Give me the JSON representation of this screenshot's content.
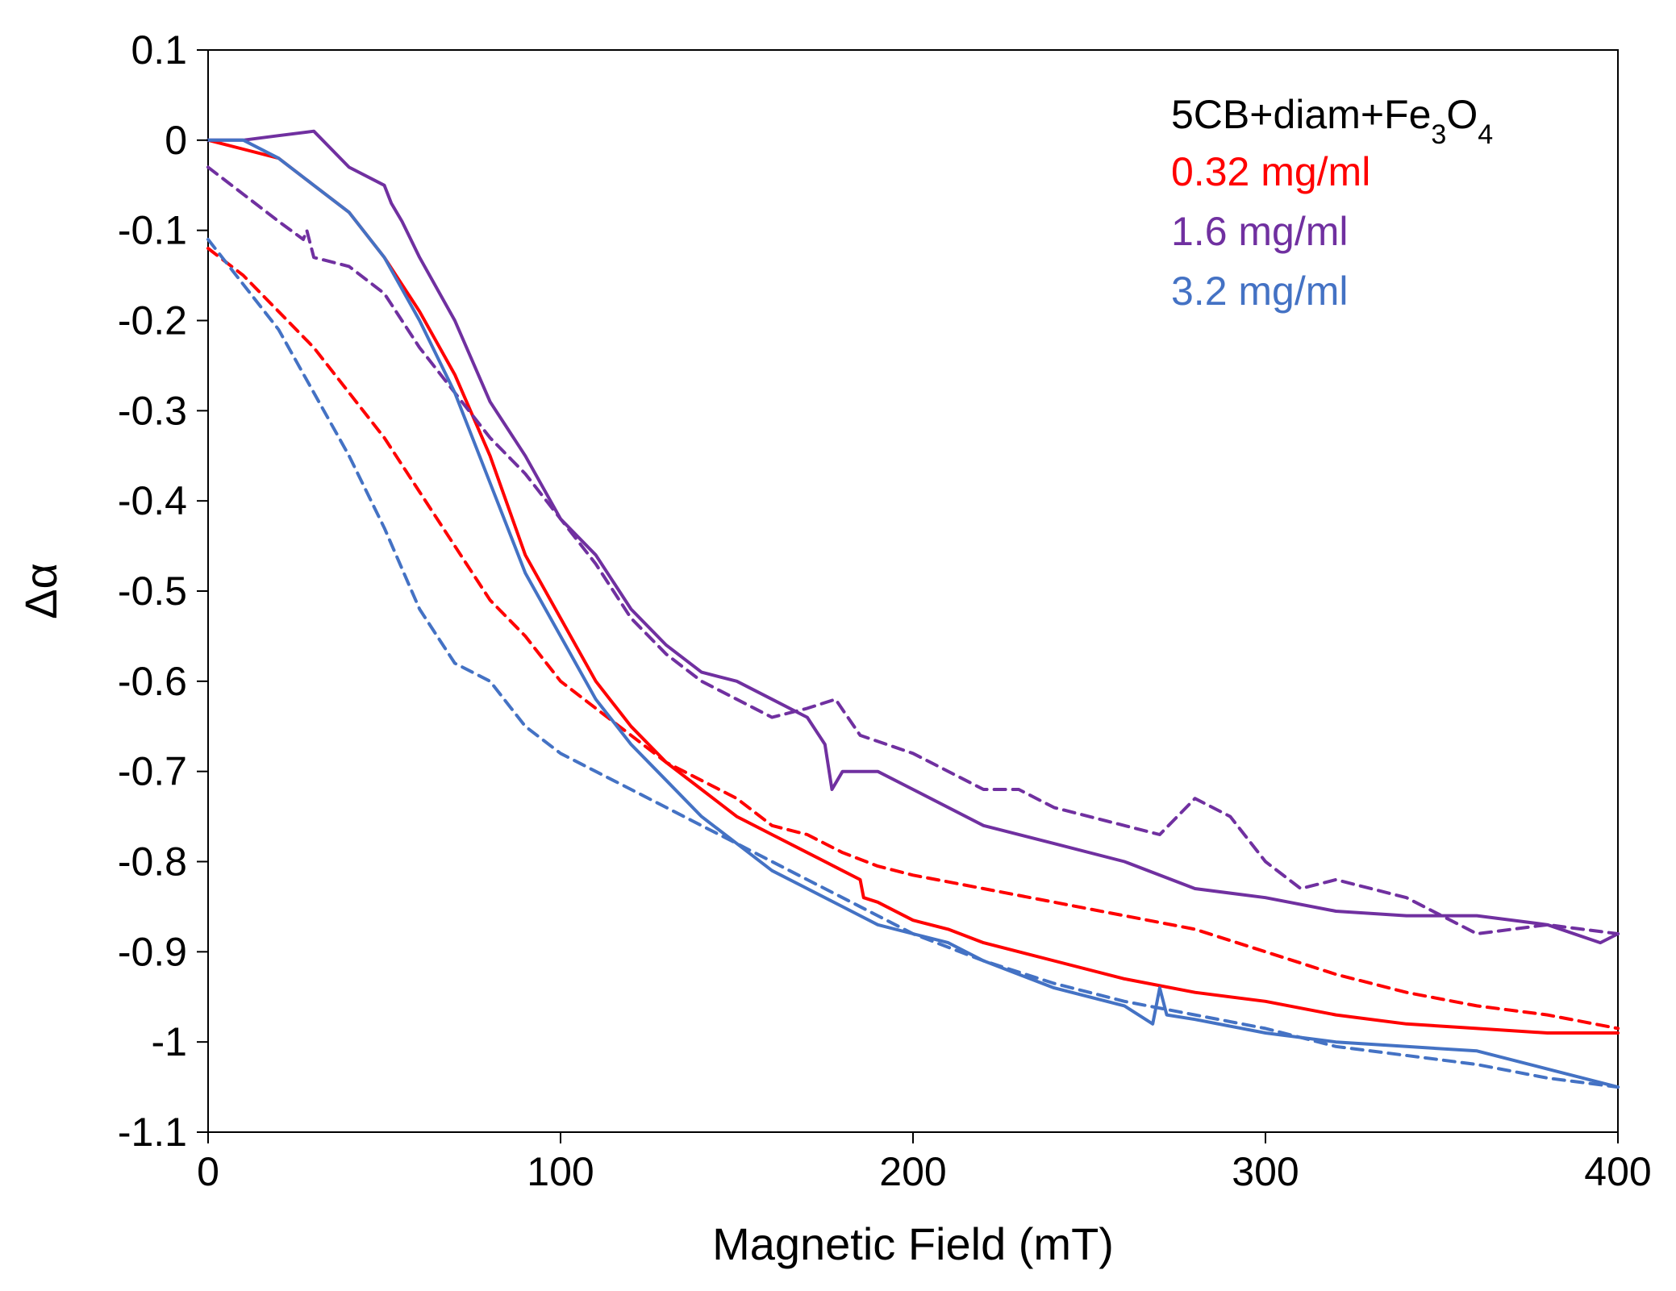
{
  "chart_data": {
    "type": "line",
    "xlabel": "Magnetic Field (mT)",
    "ylabel": "Δα",
    "xlim": [
      0,
      400
    ],
    "ylim": [
      -1.1,
      0.1
    ],
    "x_ticks": [
      "0",
      "100",
      "200",
      "300",
      "400"
    ],
    "y_ticks": [
      "0.1",
      "0",
      "-0.1",
      "-0.2",
      "-0.3",
      "-0.4",
      "-0.5",
      "-0.6",
      "-0.7",
      "-0.8",
      "-0.9",
      "-1",
      "-1.1"
    ],
    "grid": false,
    "legend_position": "top-right",
    "legend": {
      "heading_parts": [
        {
          "text": "5CB+diam+Fe",
          "sub": false
        },
        {
          "text": "3",
          "sub": true
        },
        {
          "text": "O",
          "sub": false
        },
        {
          "text": "4",
          "sub": true
        }
      ],
      "entries": [
        {
          "label": "0.32 mg/ml",
          "color": "#ff0000"
        },
        {
          "label": "1.6 mg/ml",
          "color": "#7030a0"
        },
        {
          "label": "3.2 mg/ml",
          "color": "#4472c4"
        }
      ]
    },
    "series": [
      {
        "color": "#ff0000",
        "dash": false,
        "x": [
          0,
          10,
          20,
          30,
          40,
          50,
          60,
          70,
          80,
          90,
          100,
          110,
          120,
          130,
          140,
          150,
          160,
          170,
          180,
          185,
          186,
          190,
          200,
          210,
          220,
          240,
          260,
          280,
          300,
          320,
          340,
          360,
          380,
          400
        ],
        "y": [
          0.0,
          -0.01,
          -0.02,
          -0.05,
          -0.08,
          -0.13,
          -0.19,
          -0.26,
          -0.35,
          -0.46,
          -0.53,
          -0.6,
          -0.65,
          -0.69,
          -0.72,
          -0.75,
          -0.77,
          -0.79,
          -0.81,
          -0.82,
          -0.84,
          -0.845,
          -0.865,
          -0.875,
          -0.89,
          -0.91,
          -0.93,
          -0.945,
          -0.955,
          -0.97,
          -0.98,
          -0.985,
          -0.99,
          -0.99
        ]
      },
      {
        "color": "#ff0000",
        "dash": true,
        "x": [
          0,
          10,
          20,
          30,
          40,
          50,
          60,
          70,
          80,
          90,
          100,
          110,
          120,
          130,
          140,
          150,
          160,
          170,
          180,
          190,
          200,
          220,
          240,
          260,
          280,
          300,
          320,
          340,
          360,
          380,
          400
        ],
        "y": [
          -0.12,
          -0.15,
          -0.19,
          -0.23,
          -0.28,
          -0.33,
          -0.39,
          -0.45,
          -0.51,
          -0.55,
          -0.6,
          -0.63,
          -0.66,
          -0.69,
          -0.71,
          -0.73,
          -0.76,
          -0.77,
          -0.79,
          -0.805,
          -0.815,
          -0.83,
          -0.845,
          -0.86,
          -0.875,
          -0.9,
          -0.925,
          -0.945,
          -0.96,
          -0.97,
          -0.985
        ]
      },
      {
        "color": "#7030a0",
        "dash": false,
        "x": [
          0,
          10,
          20,
          30,
          40,
          50,
          52,
          55,
          60,
          70,
          80,
          90,
          100,
          110,
          120,
          130,
          140,
          150,
          160,
          170,
          175,
          177,
          180,
          190,
          200,
          220,
          240,
          260,
          280,
          300,
          320,
          340,
          360,
          380,
          395,
          400
        ],
        "y": [
          0.0,
          0.0,
          0.005,
          0.01,
          -0.03,
          -0.05,
          -0.07,
          -0.09,
          -0.13,
          -0.2,
          -0.29,
          -0.35,
          -0.42,
          -0.46,
          -0.52,
          -0.56,
          -0.59,
          -0.6,
          -0.62,
          -0.64,
          -0.67,
          -0.72,
          -0.7,
          -0.7,
          -0.72,
          -0.76,
          -0.78,
          -0.8,
          -0.83,
          -0.84,
          -0.855,
          -0.86,
          -0.86,
          -0.87,
          -0.89,
          -0.88
        ]
      },
      {
        "color": "#7030a0",
        "dash": true,
        "x": [
          0,
          10,
          20,
          27,
          28,
          30,
          40,
          50,
          60,
          70,
          80,
          90,
          100,
          110,
          120,
          130,
          140,
          150,
          160,
          170,
          178,
          185,
          200,
          220,
          230,
          240,
          260,
          270,
          280,
          290,
          300,
          310,
          320,
          340,
          360,
          380,
          400
        ],
        "y": [
          -0.03,
          -0.06,
          -0.09,
          -0.11,
          -0.1,
          -0.13,
          -0.14,
          -0.17,
          -0.23,
          -0.28,
          -0.33,
          -0.37,
          -0.42,
          -0.47,
          -0.53,
          -0.57,
          -0.6,
          -0.62,
          -0.64,
          -0.63,
          -0.62,
          -0.66,
          -0.68,
          -0.72,
          -0.72,
          -0.74,
          -0.76,
          -0.77,
          -0.73,
          -0.75,
          -0.8,
          -0.83,
          -0.82,
          -0.84,
          -0.88,
          -0.87,
          -0.88
        ]
      },
      {
        "color": "#4472c4",
        "dash": false,
        "x": [
          0,
          10,
          20,
          30,
          40,
          50,
          60,
          70,
          80,
          90,
          100,
          110,
          120,
          130,
          140,
          150,
          160,
          170,
          180,
          190,
          200,
          210,
          220,
          240,
          260,
          268,
          270,
          272,
          280,
          300,
          320,
          340,
          360,
          380,
          400
        ],
        "y": [
          0.0,
          0.0,
          -0.02,
          -0.05,
          -0.08,
          -0.13,
          -0.2,
          -0.28,
          -0.38,
          -0.48,
          -0.55,
          -0.62,
          -0.67,
          -0.71,
          -0.75,
          -0.78,
          -0.81,
          -0.83,
          -0.85,
          -0.87,
          -0.88,
          -0.89,
          -0.91,
          -0.94,
          -0.96,
          -0.98,
          -0.94,
          -0.97,
          -0.975,
          -0.99,
          -1.0,
          -1.005,
          -1.01,
          -1.03,
          -1.05
        ]
      },
      {
        "color": "#4472c4",
        "dash": true,
        "x": [
          0,
          10,
          20,
          30,
          40,
          50,
          60,
          70,
          80,
          90,
          100,
          110,
          120,
          130,
          140,
          150,
          160,
          170,
          180,
          190,
          200,
          220,
          240,
          260,
          280,
          300,
          320,
          340,
          360,
          380,
          400
        ],
        "y": [
          -0.11,
          -0.16,
          -0.21,
          -0.28,
          -0.35,
          -0.43,
          -0.52,
          -0.58,
          -0.6,
          -0.65,
          -0.68,
          -0.7,
          -0.72,
          -0.74,
          -0.76,
          -0.78,
          -0.8,
          -0.82,
          -0.84,
          -0.86,
          -0.88,
          -0.91,
          -0.935,
          -0.955,
          -0.97,
          -0.985,
          -1.005,
          -1.015,
          -1.025,
          -1.04,
          -1.05
        ]
      }
    ]
  }
}
